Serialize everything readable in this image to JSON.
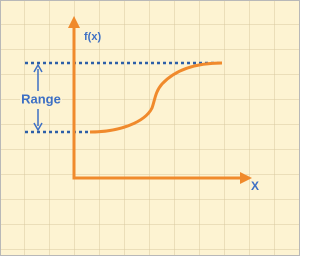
{
  "labels": {
    "y_axis": "f(x)",
    "x_axis": "X",
    "range": "Range"
  }
}
